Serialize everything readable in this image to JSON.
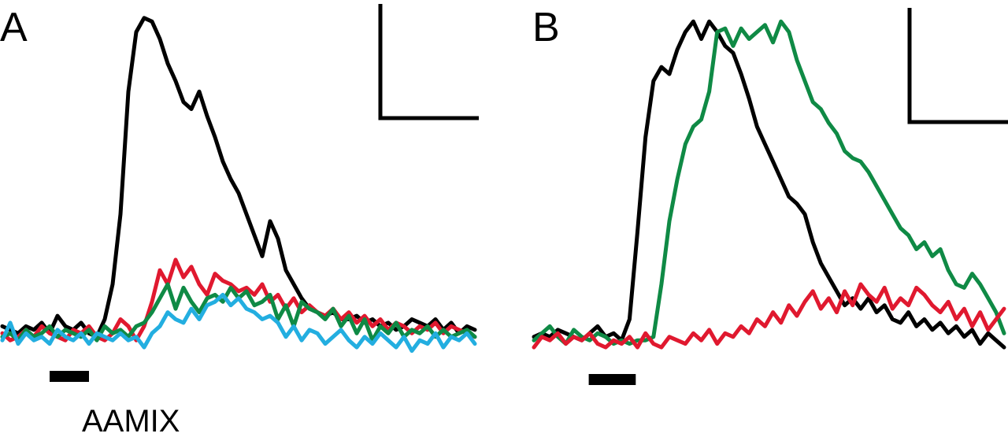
{
  "colors": {
    "black": "#000000",
    "red": "#e0192f",
    "green": "#0f8a45",
    "blue": "#23aee0"
  },
  "chart_data": [
    {
      "type": "line",
      "panel_label": "A",
      "stimulus_label": "AAMIX",
      "x_range": [
        0,
        60
      ],
      "y_range": [
        0,
        1
      ],
      "x_stim_bar": [
        6,
        11
      ],
      "axes": "none",
      "scale_bar": "top-right",
      "series": [
        {
          "color": "black",
          "values": [
            0.08,
            0.07,
            0.06,
            0.08,
            0.07,
            0.09,
            0.06,
            0.11,
            0.08,
            0.07,
            0.09,
            0.06,
            0.05,
            0.1,
            0.2,
            0.4,
            0.75,
            0.92,
            0.96,
            0.95,
            0.9,
            0.83,
            0.78,
            0.72,
            0.7,
            0.75,
            0.68,
            0.62,
            0.55,
            0.5,
            0.46,
            0.4,
            0.34,
            0.28,
            0.38,
            0.33,
            0.24,
            0.2,
            0.16,
            0.13,
            0.12,
            0.11,
            0.12,
            0.1,
            0.1,
            0.11,
            0.09,
            0.1,
            0.08,
            0.09,
            0.07,
            0.08,
            0.1,
            0.09,
            0.08,
            0.1,
            0.07,
            0.09,
            0.06,
            0.08,
            0.07
          ]
        },
        {
          "color": "red",
          "values": [
            0.06,
            0.04,
            0.05,
            0.07,
            0.05,
            0.08,
            0.06,
            0.05,
            0.04,
            0.07,
            0.06,
            0.08,
            0.05,
            0.04,
            0.06,
            0.1,
            0.08,
            0.04,
            0.08,
            0.15,
            0.24,
            0.2,
            0.27,
            0.22,
            0.25,
            0.2,
            0.17,
            0.23,
            0.21,
            0.2,
            0.18,
            0.19,
            0.17,
            0.2,
            0.15,
            0.17,
            0.13,
            0.16,
            0.12,
            0.14,
            0.12,
            0.11,
            0.13,
            0.1,
            0.12,
            0.09,
            0.11,
            0.08,
            0.1,
            0.07,
            0.09,
            0.08,
            0.06,
            0.08,
            0.07,
            0.09,
            0.06,
            0.08,
            0.07,
            0.06,
            0.05
          ]
        },
        {
          "color": "green",
          "values": [
            0.05,
            0.06,
            0.04,
            0.07,
            0.05,
            0.06,
            0.08,
            0.05,
            0.07,
            0.06,
            0.05,
            0.07,
            0.04,
            0.08,
            0.06,
            0.07,
            0.05,
            0.08,
            0.09,
            0.12,
            0.16,
            0.2,
            0.13,
            0.19,
            0.15,
            0.12,
            0.16,
            0.17,
            0.15,
            0.19,
            0.16,
            0.18,
            0.14,
            0.15,
            0.17,
            0.1,
            0.14,
            0.08,
            0.15,
            0.13,
            0.12,
            0.1,
            0.13,
            0.08,
            0.11,
            0.06,
            0.1,
            0.04,
            0.08,
            0.06,
            0.09,
            0.05,
            0.07,
            0.06,
            0.08,
            0.05,
            0.07,
            0.05,
            0.06,
            0.07,
            0.05
          ]
        },
        {
          "color": "blue",
          "values": [
            0.04,
            0.09,
            0.03,
            0.06,
            0.04,
            0.05,
            0.03,
            0.07,
            0.05,
            0.04,
            0.06,
            0.03,
            0.06,
            0.05,
            0.04,
            0.06,
            0.04,
            0.05,
            0.02,
            0.06,
            0.08,
            0.12,
            0.1,
            0.09,
            0.13,
            0.1,
            0.14,
            0.15,
            0.17,
            0.14,
            0.16,
            0.13,
            0.12,
            0.1,
            0.11,
            0.09,
            0.05,
            0.08,
            0.04,
            0.07,
            0.06,
            0.03,
            0.05,
            0.07,
            0.04,
            0.02,
            0.05,
            0.03,
            0.06,
            0.04,
            0.02,
            0.05,
            0.01,
            0.04,
            0.03,
            0.06,
            0.02,
            0.05,
            0.04,
            0.06,
            0.03
          ]
        }
      ]
    },
    {
      "type": "line",
      "panel_label": "B",
      "x_range": [
        0,
        60
      ],
      "y_range": [
        0,
        1
      ],
      "x_stim_bar": [
        7,
        13
      ],
      "axes": "none",
      "scale_bar": "top-right",
      "series": [
        {
          "color": "black",
          "values": [
            0.05,
            0.06,
            0.05,
            0.07,
            0.06,
            0.05,
            0.04,
            0.06,
            0.08,
            0.05,
            0.06,
            0.04,
            0.1,
            0.35,
            0.62,
            0.78,
            0.82,
            0.8,
            0.87,
            0.92,
            0.95,
            0.9,
            0.95,
            0.92,
            0.88,
            0.86,
            0.8,
            0.73,
            0.65,
            0.6,
            0.55,
            0.5,
            0.45,
            0.43,
            0.4,
            0.32,
            0.26,
            0.22,
            0.18,
            0.14,
            0.16,
            0.13,
            0.16,
            0.12,
            0.14,
            0.1,
            0.09,
            0.12,
            0.08,
            0.1,
            0.07,
            0.09,
            0.06,
            0.08,
            0.05,
            0.07,
            0.03,
            0.06,
            0.04,
            0.02
          ]
        },
        {
          "color": "green",
          "values": [
            0.04,
            0.06,
            0.08,
            0.05,
            0.03,
            0.07,
            0.05,
            0.04,
            0.06,
            0.05,
            0.03,
            0.04,
            0.03,
            0.04,
            0.04,
            0.05,
            0.2,
            0.38,
            0.5,
            0.6,
            0.65,
            0.67,
            0.75,
            0.92,
            0.93,
            0.88,
            0.93,
            0.9,
            0.92,
            0.94,
            0.89,
            0.95,
            0.92,
            0.84,
            0.78,
            0.72,
            0.7,
            0.66,
            0.63,
            0.58,
            0.56,
            0.55,
            0.52,
            0.48,
            0.44,
            0.4,
            0.36,
            0.34,
            0.3,
            0.32,
            0.28,
            0.3,
            0.24,
            0.2,
            0.19,
            0.23,
            0.2,
            0.16,
            0.12,
            0.06
          ]
        },
        {
          "color": "red",
          "values": [
            0.02,
            0.05,
            0.04,
            0.06,
            0.03,
            0.05,
            0.04,
            0.06,
            0.03,
            0.02,
            0.04,
            0.03,
            0.05,
            0.02,
            0.06,
            0.03,
            0.02,
            0.05,
            0.04,
            0.03,
            0.06,
            0.04,
            0.07,
            0.03,
            0.06,
            0.05,
            0.08,
            0.06,
            0.1,
            0.08,
            0.12,
            0.09,
            0.14,
            0.11,
            0.15,
            0.18,
            0.13,
            0.16,
            0.12,
            0.18,
            0.14,
            0.2,
            0.17,
            0.15,
            0.19,
            0.13,
            0.16,
            0.14,
            0.19,
            0.17,
            0.14,
            0.12,
            0.15,
            0.1,
            0.13,
            0.08,
            0.12,
            0.07,
            0.1,
            0.13
          ]
        }
      ]
    }
  ]
}
